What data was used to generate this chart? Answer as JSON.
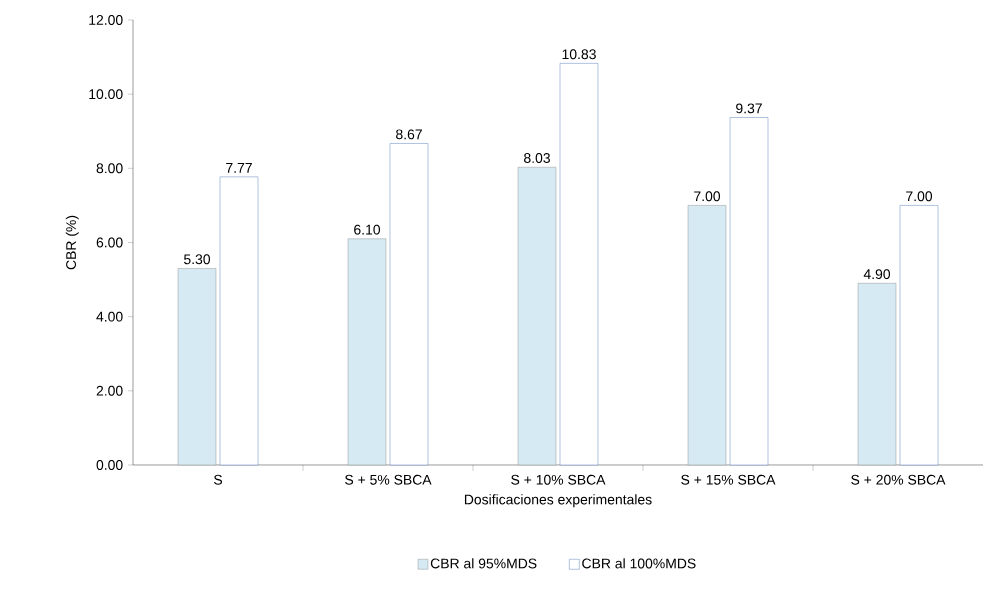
{
  "chart_data": {
    "type": "bar",
    "xlabel": "Dosificaciones experimentales",
    "ylabel": "CBR (%)",
    "categories": [
      "S",
      "S + 5% SBCA",
      "S + 10% SBCA",
      "S + 15% SBCA",
      "S + 20% SBCA"
    ],
    "series": [
      {
        "name": "CBR al 95%MDS",
        "color": "#d6eaf3",
        "values": [
          5.3,
          6.1,
          8.03,
          7.0,
          4.9
        ],
        "value_labels": [
          "5.30",
          "6.10",
          "8.03",
          "7.00",
          "4.90"
        ]
      },
      {
        "name": "CBR al 100%MDS",
        "color": "#3a64b0",
        "values": [
          7.77,
          8.67,
          10.83,
          9.37,
          7.0
        ],
        "value_labels": [
          "7.77",
          "8.67",
          "10.83",
          "9.37",
          "7.00"
        ]
      }
    ],
    "ylim": [
      0,
      12
    ],
    "yticks": [
      {
        "value": 0,
        "label": "0.00"
      },
      {
        "value": 2,
        "label": "2.00"
      },
      {
        "value": 4,
        "label": "4.00"
      },
      {
        "value": 6,
        "label": "6.00"
      },
      {
        "value": 8,
        "label": "8.00"
      },
      {
        "value": 10,
        "label": "10.00"
      },
      {
        "value": 12,
        "label": "12.00"
      }
    ],
    "grid": false,
    "legend": "bottom"
  }
}
